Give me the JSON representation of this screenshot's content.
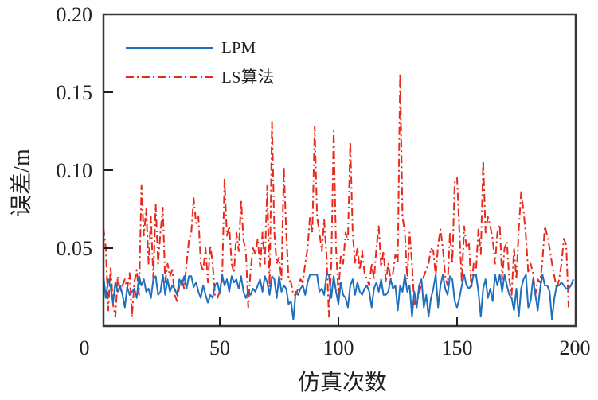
{
  "chart_data": {
    "type": "line",
    "title": "",
    "xlabel": "仿真次数",
    "ylabel": "误差/m",
    "xlim": [
      0,
      200
    ],
    "ylim": [
      0,
      0.2
    ],
    "x_ticks": [
      0,
      50,
      100,
      150,
      200
    ],
    "x_tick_labels": [
      "0",
      "50",
      "100",
      "150",
      "200"
    ],
    "y_ticks": [
      0.05,
      0.1,
      0.15,
      0.2
    ],
    "y_tick_labels": [
      "0.05",
      "0.10",
      "0.15",
      "0.20"
    ],
    "grid": false,
    "legend_position": "top-left",
    "series": [
      {
        "name": "LPM",
        "color": "#1f6fbf",
        "style": "solid",
        "x_start": 1,
        "values": [
          0.032,
          0.018,
          0.03,
          0.025,
          0.015,
          0.028,
          0.022,
          0.026,
          0.02,
          0.012,
          0.025,
          0.02,
          0.022,
          0.024,
          0.018,
          0.032,
          0.026,
          0.03,
          0.022,
          0.024,
          0.018,
          0.03,
          0.032,
          0.02,
          0.022,
          0.033,
          0.02,
          0.03,
          0.022,
          0.026,
          0.024,
          0.02,
          0.03,
          0.026,
          0.032,
          0.024,
          0.032,
          0.032,
          0.025,
          0.028,
          0.022,
          0.018,
          0.026,
          0.02,
          0.015,
          0.02,
          0.018,
          0.026,
          0.028,
          0.021,
          0.033,
          0.026,
          0.03,
          0.022,
          0.032,
          0.028,
          0.03,
          0.024,
          0.032,
          0.022,
          0.018,
          0.022,
          0.02,
          0.024,
          0.022,
          0.026,
          0.03,
          0.022,
          0.032,
          0.028,
          0.02,
          0.032,
          0.03,
          0.018,
          0.032,
          0.022,
          0.026,
          0.024,
          0.014,
          0.016,
          0.004,
          0.022,
          0.02,
          0.024,
          0.026,
          0.02,
          0.028,
          0.033,
          0.033,
          0.033,
          0.033,
          0.022,
          0.024,
          0.02,
          0.033,
          0.033,
          0.018,
          0.032,
          0.022,
          0.014,
          0.028,
          0.02,
          0.018,
          0.012,
          0.026,
          0.03,
          0.02,
          0.028,
          0.022,
          0.02,
          0.024,
          0.026,
          0.022,
          0.012,
          0.024,
          0.028,
          0.022,
          0.03,
          0.02,
          0.02,
          0.022,
          0.03,
          0.024,
          0.026,
          0.01,
          0.026,
          0.022,
          0.033,
          0.022,
          0.026,
          0.006,
          0.022,
          0.012,
          0.026,
          0.03,
          0.012,
          0.02,
          0.006,
          0.018,
          0.024,
          0.033,
          0.012,
          0.026,
          0.033,
          0.024,
          0.02,
          0.032,
          0.03,
          0.016,
          0.012,
          0.018,
          0.026,
          0.033,
          0.026,
          0.024,
          0.026,
          0.033,
          0.033,
          0.022,
          0.006,
          0.024,
          0.03,
          0.018,
          0.024,
          0.016,
          0.033,
          0.026,
          0.033,
          0.022,
          0.033,
          0.026,
          0.02,
          0.018,
          0.01,
          0.024,
          0.006,
          0.024,
          0.03,
          0.033,
          0.012,
          0.016,
          0.03,
          0.02,
          0.01,
          0.024,
          0.033,
          0.026,
          0.026,
          0.022,
          0.004,
          0.018,
          0.026,
          0.026,
          0.028,
          0.026,
          0.024,
          0.024,
          0.026,
          0.03
        ]
      },
      {
        "name": "LS算法",
        "color": "#e8291c",
        "style": "dashdot",
        "x_start": 1,
        "values": [
          0.063,
          0.05,
          0.01,
          0.038,
          0.014,
          0.006,
          0.032,
          0.022,
          0.026,
          0.03,
          0.024,
          0.034,
          0.006,
          0.028,
          0.036,
          0.02,
          0.09,
          0.058,
          0.075,
          0.04,
          0.07,
          0.03,
          0.078,
          0.04,
          0.06,
          0.076,
          0.028,
          0.04,
          0.032,
          0.036,
          0.02,
          0.016,
          0.026,
          0.03,
          0.024,
          0.04,
          0.055,
          0.06,
          0.082,
          0.066,
          0.07,
          0.04,
          0.035,
          0.05,
          0.028,
          0.052,
          0.04,
          0.02,
          0.018,
          0.022,
          0.03,
          0.094,
          0.058,
          0.064,
          0.04,
          0.034,
          0.06,
          0.048,
          0.081,
          0.055,
          0.048,
          0.012,
          0.036,
          0.05,
          0.046,
          0.056,
          0.038,
          0.06,
          0.04,
          0.09,
          0.025,
          0.131,
          0.06,
          0.04,
          0.044,
          0.03,
          0.102,
          0.06,
          0.03,
          0.028,
          0.02,
          0.02,
          0.024,
          0.03,
          0.028,
          0.04,
          0.05,
          0.07,
          0.06,
          0.128,
          0.07,
          0.06,
          0.048,
          0.068,
          0.045,
          0.006,
          0.04,
          0.125,
          0.05,
          0.02,
          0.046,
          0.04,
          0.06,
          0.055,
          0.118,
          0.06,
          0.04,
          0.05,
          0.036,
          0.048,
          0.034,
          0.03,
          0.026,
          0.04,
          0.03,
          0.05,
          0.064,
          0.038,
          0.048,
          0.028,
          0.04,
          0.03,
          0.034,
          0.046,
          0.04,
          0.162,
          0.07,
          0.06,
          0.03,
          0.06,
          0.04,
          0.014,
          0.016,
          0.02,
          0.028,
          0.032,
          0.036,
          0.04,
          0.05,
          0.048,
          0.032,
          0.052,
          0.062,
          0.05,
          0.032,
          0.026,
          0.06,
          0.04,
          0.092,
          0.095,
          0.06,
          0.028,
          0.064,
          0.05,
          0.054,
          0.024,
          0.04,
          0.036,
          0.062,
          0.046,
          0.106,
          0.06,
          0.07,
          0.064,
          0.056,
          0.04,
          0.06,
          0.065,
          0.03,
          0.05,
          0.054,
          0.03,
          0.02,
          0.05,
          0.03,
          0.062,
          0.086,
          0.074,
          0.058,
          0.034,
          0.04,
          0.034,
          0.02,
          0.03,
          0.028,
          0.042,
          0.064,
          0.058,
          0.05,
          0.04,
          0.032,
          0.024,
          0.03,
          0.04,
          0.056,
          0.052,
          0.012
        ]
      }
    ]
  }
}
